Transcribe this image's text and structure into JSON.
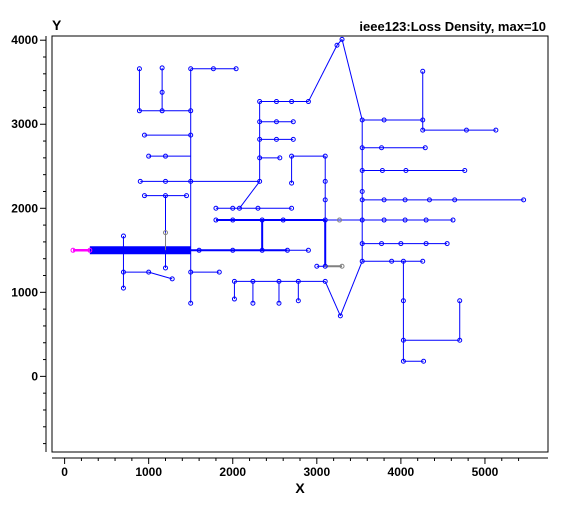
{
  "chart_data": {
    "type": "scatter",
    "title": "ieee123:Loss Density, max=10",
    "xlabel": "X",
    "ylabel": "Y",
    "xlim": [
      -150,
      5750
    ],
    "ylim": [
      -900,
      4050
    ],
    "xticks": [
      0,
      1000,
      2000,
      3000,
      4000,
      5000
    ],
    "yticks": [
      0,
      1000,
      2000,
      3000,
      4000
    ],
    "grid": false,
    "colors": {
      "line": "#0000ff",
      "high": "#ff00ff",
      "low": "#808080",
      "axis": "#000000"
    },
    "segments": [
      [
        100,
        1500,
        300,
        1500,
        "h"
      ],
      [
        300,
        1500,
        1500,
        1500,
        "t"
      ],
      [
        700,
        1500,
        700,
        1670,
        "n"
      ],
      [
        700,
        1500,
        700,
        1240,
        "n"
      ],
      [
        700,
        1240,
        700,
        1050,
        "n"
      ],
      [
        700,
        1240,
        1000,
        1240,
        "n"
      ],
      [
        1000,
        1240,
        1280,
        1160,
        "n"
      ],
      [
        1200,
        1500,
        1200,
        1710,
        "l"
      ],
      [
        1200,
        1710,
        1200,
        2150,
        "n"
      ],
      [
        1200,
        1500,
        1200,
        1290,
        "n"
      ],
      [
        950,
        2150,
        1200,
        2150,
        "n"
      ],
      [
        1200,
        2150,
        1450,
        2150,
        "n"
      ],
      [
        1500,
        1500,
        1500,
        3660,
        "n"
      ],
      [
        1500,
        1500,
        1500,
        870,
        "n"
      ],
      [
        1500,
        1240,
        1840,
        1240,
        "n"
      ],
      [
        900,
        2320,
        1500,
        2320,
        "n"
      ],
      [
        1000,
        2620,
        1500,
        2620,
        "n"
      ],
      [
        950,
        2870,
        1500,
        2870,
        "n"
      ],
      [
        1500,
        3660,
        2040,
        3660,
        "n"
      ],
      [
        1500,
        3160,
        890,
        3160,
        "n"
      ],
      [
        890,
        3160,
        890,
        3660,
        "n"
      ],
      [
        1160,
        3160,
        1160,
        3670,
        "n"
      ],
      [
        1500,
        2320,
        2320,
        2320,
        "n"
      ],
      [
        2320,
        2320,
        2320,
        3270,
        "n"
      ],
      [
        2320,
        3270,
        2900,
        3270,
        "n"
      ],
      [
        2900,
        3270,
        3240,
        3940,
        "n"
      ],
      [
        3240,
        3940,
        3300,
        4010,
        "n"
      ],
      [
        3300,
        4010,
        3540,
        3050,
        "n"
      ],
      [
        2320,
        3030,
        2720,
        3030,
        "n"
      ],
      [
        2320,
        2820,
        2720,
        2820,
        "n"
      ],
      [
        2320,
        2600,
        2560,
        2600,
        "n"
      ],
      [
        2320,
        2320,
        2080,
        2000,
        "n"
      ],
      [
        1800,
        2000,
        2700,
        2000,
        "n"
      ],
      [
        1500,
        1500,
        2650,
        1500,
        "w"
      ],
      [
        2650,
        1500,
        2900,
        1500,
        "n"
      ],
      [
        2350,
        1500,
        2350,
        1860,
        "w"
      ],
      [
        1800,
        1860,
        3100,
        1860,
        "w"
      ],
      [
        3100,
        1860,
        3100,
        1310,
        "w"
      ],
      [
        3100,
        1860,
        3540,
        1860,
        "n"
      ],
      [
        3100,
        1860,
        3100,
        2620,
        "n"
      ],
      [
        2700,
        2620,
        3100,
        2620,
        "n"
      ],
      [
        2700,
        2620,
        2700,
        2300,
        "n"
      ],
      [
        3100,
        1310,
        3300,
        1310,
        "g"
      ],
      [
        3000,
        1310,
        3100,
        1310,
        "n"
      ],
      [
        3100,
        1130,
        2020,
        1130,
        "n"
      ],
      [
        2020,
        1130,
        2020,
        920,
        "n"
      ],
      [
        2240,
        1130,
        2240,
        870,
        "n"
      ],
      [
        2550,
        1130,
        2550,
        870,
        "n"
      ],
      [
        2780,
        1130,
        2780,
        900,
        "n"
      ],
      [
        3100,
        1130,
        3280,
        720,
        "n"
      ],
      [
        3280,
        720,
        3540,
        1370,
        "n"
      ],
      [
        3540,
        1370,
        3540,
        3050,
        "n"
      ],
      [
        3540,
        1370,
        4260,
        1370,
        "n"
      ],
      [
        4030,
        1370,
        4030,
        180,
        "n"
      ],
      [
        4030,
        180,
        4270,
        180,
        "n"
      ],
      [
        4030,
        430,
        4700,
        430,
        "n"
      ],
      [
        4700,
        430,
        4700,
        900,
        "n"
      ],
      [
        3540,
        1580,
        4550,
        1580,
        "n"
      ],
      [
        3540,
        1860,
        4620,
        1860,
        "n"
      ],
      [
        3540,
        2100,
        5460,
        2100,
        "n"
      ],
      [
        3540,
        2450,
        4760,
        2450,
        "n"
      ],
      [
        3540,
        2720,
        4290,
        2720,
        "n"
      ],
      [
        3540,
        3050,
        4260,
        3050,
        "n"
      ],
      [
        4260,
        3050,
        4260,
        3630,
        "n"
      ],
      [
        4260,
        3050,
        4260,
        2930,
        "n"
      ],
      [
        4260,
        2930,
        5130,
        2930,
        "n"
      ]
    ],
    "nodes": [
      [
        100,
        1500,
        "h"
      ],
      [
        300,
        1500,
        "h"
      ],
      [
        700,
        1670
      ],
      [
        700,
        1240
      ],
      [
        700,
        1050
      ],
      [
        1000,
        1240
      ],
      [
        1280,
        1160
      ],
      [
        1200,
        1710,
        "l"
      ],
      [
        1200,
        1290
      ],
      [
        950,
        2150
      ],
      [
        1200,
        2150
      ],
      [
        1450,
        2150
      ],
      [
        1500,
        870
      ],
      [
        1500,
        1240
      ],
      [
        1840,
        1240
      ],
      [
        900,
        2320
      ],
      [
        1200,
        2320
      ],
      [
        1500,
        2320
      ],
      [
        1000,
        2620
      ],
      [
        1200,
        2620
      ],
      [
        950,
        2870
      ],
      [
        1500,
        2870
      ],
      [
        1500,
        3160
      ],
      [
        1500,
        3660
      ],
      [
        1770,
        3660
      ],
      [
        2040,
        3660
      ],
      [
        890,
        3160
      ],
      [
        890,
        3660
      ],
      [
        1160,
        3160
      ],
      [
        1160,
        3380
      ],
      [
        1160,
        3670
      ],
      [
        2320,
        3270
      ],
      [
        2520,
        3270
      ],
      [
        2700,
        3270
      ],
      [
        2900,
        3270
      ],
      [
        3240,
        3940
      ],
      [
        3300,
        4010
      ],
      [
        2320,
        3030
      ],
      [
        2520,
        3030
      ],
      [
        2720,
        3030
      ],
      [
        2320,
        2820
      ],
      [
        2520,
        2820
      ],
      [
        2720,
        2820
      ],
      [
        2320,
        2600
      ],
      [
        2560,
        2600
      ],
      [
        2320,
        2320
      ],
      [
        2080,
        2000
      ],
      [
        1800,
        2000
      ],
      [
        2000,
        2000
      ],
      [
        2300,
        2000
      ],
      [
        2700,
        2000
      ],
      [
        1600,
        1500
      ],
      [
        2000,
        1500
      ],
      [
        2350,
        1500
      ],
      [
        2650,
        1500
      ],
      [
        2900,
        1500
      ],
      [
        1800,
        1860
      ],
      [
        2000,
        1860
      ],
      [
        2350,
        1860
      ],
      [
        2600,
        1860
      ],
      [
        3100,
        1860
      ],
      [
        3270,
        1860,
        "l"
      ],
      [
        3100,
        2100
      ],
      [
        3100,
        2320
      ],
      [
        3100,
        2620
      ],
      [
        2700,
        2620
      ],
      [
        2700,
        2300
      ],
      [
        3000,
        1310
      ],
      [
        3100,
        1310
      ],
      [
        3300,
        1310,
        "l"
      ],
      [
        2020,
        1130
      ],
      [
        2020,
        920
      ],
      [
        2240,
        1130
      ],
      [
        2240,
        870
      ],
      [
        2550,
        1130
      ],
      [
        2550,
        870
      ],
      [
        2780,
        1130
      ],
      [
        2780,
        900
      ],
      [
        3100,
        1130
      ],
      [
        3280,
        720
      ],
      [
        3540,
        1370
      ],
      [
        3540,
        1580
      ],
      [
        3540,
        1860
      ],
      [
        3540,
        2100
      ],
      [
        3540,
        2200
      ],
      [
        3540,
        2450
      ],
      [
        3540,
        2720
      ],
      [
        3540,
        3050
      ],
      [
        3890,
        1370
      ],
      [
        4030,
        1370
      ],
      [
        4260,
        1370
      ],
      [
        4030,
        900
      ],
      [
        4030,
        430
      ],
      [
        4030,
        180
      ],
      [
        4270,
        180
      ],
      [
        4700,
        430
      ],
      [
        4700,
        900
      ],
      [
        3770,
        1580
      ],
      [
        4000,
        1580
      ],
      [
        4300,
        1580
      ],
      [
        4550,
        1580
      ],
      [
        3800,
        1860
      ],
      [
        4050,
        1860
      ],
      [
        4300,
        1860
      ],
      [
        4620,
        1860
      ],
      [
        3800,
        2100
      ],
      [
        4050,
        2100
      ],
      [
        4340,
        2100
      ],
      [
        4640,
        2100
      ],
      [
        5460,
        2100
      ],
      [
        3780,
        2450
      ],
      [
        4060,
        2450
      ],
      [
        4760,
        2450
      ],
      [
        3770,
        2720
      ],
      [
        4290,
        2720
      ],
      [
        3800,
        3050
      ],
      [
        4260,
        3050
      ],
      [
        4260,
        3630
      ],
      [
        4260,
        2930
      ],
      [
        4780,
        2930
      ],
      [
        5130,
        2930
      ]
    ]
  }
}
